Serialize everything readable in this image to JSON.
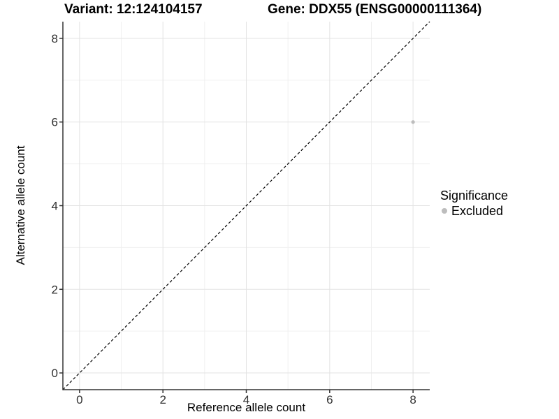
{
  "header": {
    "variant_title": "Variant: 12:124104157",
    "gene_title": "Gene: DDX55 (ENSG00000111364)"
  },
  "legend": {
    "title": "Significance",
    "items": [
      {
        "label": "Excluded",
        "color": "#bdbdbd"
      }
    ]
  },
  "chart_data": {
    "type": "scatter",
    "title_left": "Variant: 12:124104157",
    "title_right": "Gene: DDX55 (ENSG00000111364)",
    "xlabel": "Reference allele count",
    "ylabel": "Alternative allele count",
    "xlim": [
      -0.4,
      8.4
    ],
    "ylim": [
      -0.4,
      8.4
    ],
    "xticks": [
      0,
      2,
      4,
      6,
      8
    ],
    "yticks": [
      0,
      2,
      4,
      6,
      8
    ],
    "x_minor_ticks": [
      1,
      3,
      5,
      7
    ],
    "y_minor_ticks": [
      1,
      3,
      5,
      7
    ],
    "grid": "on",
    "legend_position": "right",
    "reference_line": {
      "kind": "identity y=x",
      "style": "dashed",
      "color": "#000000"
    },
    "series": [
      {
        "name": "Excluded",
        "color": "#bdbdbd",
        "points": [
          [
            8,
            6
          ]
        ]
      }
    ]
  },
  "colors": {
    "background": "#ffffff",
    "grid_major": "#e3e3e3",
    "grid_minor": "#f0f0f0",
    "axis": "#333333",
    "tick_text": "#303030",
    "point": "#bdbdbd"
  }
}
